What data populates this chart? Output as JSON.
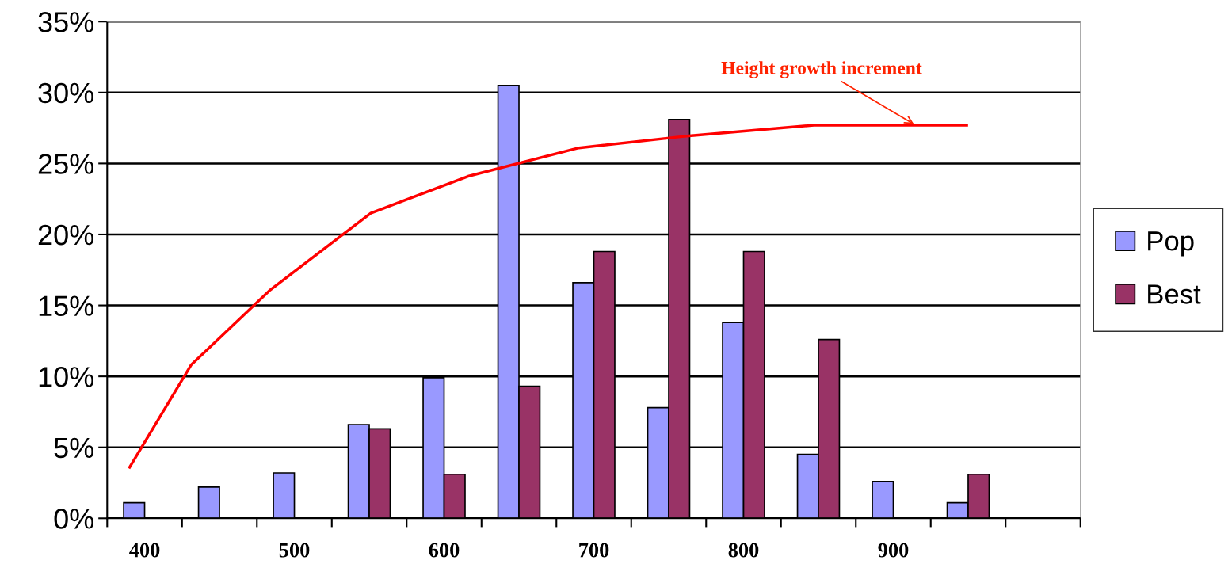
{
  "chart_data": {
    "type": "bar",
    "x": [
      400,
      450,
      500,
      550,
      600,
      650,
      700,
      750,
      800,
      850,
      900,
      950
    ],
    "xlim": [
      375,
      1025
    ],
    "xticks": [
      {
        "value": 375,
        "label": null
      },
      {
        "value": 400,
        "label": "400"
      },
      {
        "value": 425,
        "label": null
      },
      {
        "value": 475,
        "label": null
      },
      {
        "value": 500,
        "label": "500"
      },
      {
        "value": 525,
        "label": null
      },
      {
        "value": 575,
        "label": null
      },
      {
        "value": 600,
        "label": "600"
      },
      {
        "value": 625,
        "label": null
      },
      {
        "value": 675,
        "label": null
      },
      {
        "value": 700,
        "label": "700"
      },
      {
        "value": 725,
        "label": null
      },
      {
        "value": 775,
        "label": null
      },
      {
        "value": 800,
        "label": "800"
      },
      {
        "value": 825,
        "label": null
      },
      {
        "value": 875,
        "label": null
      },
      {
        "value": 900,
        "label": "900"
      },
      {
        "value": 925,
        "label": null
      },
      {
        "value": 975,
        "label": null
      },
      {
        "value": 1025,
        "label": null
      }
    ],
    "ylim": [
      0,
      35
    ],
    "yticks": [
      {
        "value": 0,
        "label": "0%"
      },
      {
        "value": 5,
        "label": "5%"
      },
      {
        "value": 10,
        "label": "10%"
      },
      {
        "value": 15,
        "label": "15%"
      },
      {
        "value": 20,
        "label": "20%"
      },
      {
        "value": 25,
        "label": "25%"
      },
      {
        "value": 30,
        "label": "30%"
      },
      {
        "value": 35,
        "label": "35%"
      }
    ],
    "grid": "y",
    "legend": "right",
    "series": [
      {
        "name": "Pop",
        "color": "#9999ff",
        "values": [
          1.1,
          2.2,
          3.2,
          6.6,
          9.9,
          30.5,
          16.6,
          7.8,
          13.8,
          4.5,
          2.6,
          1.1
        ]
      },
      {
        "name": "Best",
        "color": "#993366",
        "values": [
          null,
          null,
          null,
          6.3,
          3.1,
          9.3,
          18.8,
          28.1,
          18.8,
          12.6,
          null,
          3.1
        ]
      },
      {
        "type": "line",
        "color": "#ff0000",
        "x": [
          390,
          431,
          484,
          551,
          616,
          690,
          759,
          847,
          949
        ],
        "values": [
          3.6,
          10.8,
          16.1,
          21.5,
          24.1,
          26.1,
          26.9,
          27.7,
          27.7
        ]
      }
    ],
    "annotations": [
      {
        "text": "Height growth increment",
        "x": 915,
        "y": 27.7
      }
    ]
  }
}
